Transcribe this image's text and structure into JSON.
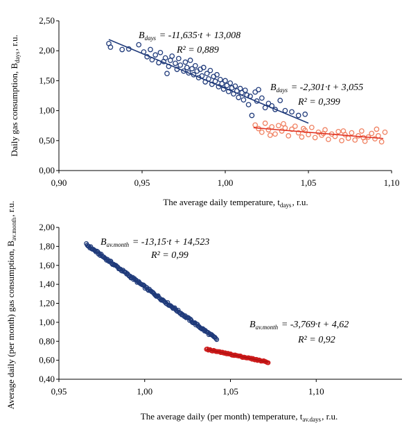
{
  "chart_data": [
    {
      "type": "scatter",
      "xlabel": "The average daily temperature, t_days, r.u.",
      "ylabel": "Daily gas consumption, B_days, r.u.",
      "xlim": [
        0.9,
        1.1
      ],
      "ylim": [
        0.0,
        2.5
      ],
      "x_ticks": [
        "0,90",
        "0,95",
        "1,00",
        "1,05",
        "1,10"
      ],
      "y_ticks": [
        "0,00",
        "0,50",
        "1,00",
        "1,50",
        "2,00",
        "2,50"
      ],
      "grid": false,
      "series": [
        {
          "color": "#1f3a7a",
          "trend": {
            "slope": -11.635,
            "intercept": 13.008,
            "x_range": [
              0.93,
              1.05
            ]
          },
          "equation": "B_days = -11,635·t + 13,008",
          "r2": "R² = 0,889",
          "points": [
            [
              0.93,
              2.12
            ],
            [
              0.931,
              2.06
            ],
            [
              0.938,
              2.02
            ],
            [
              0.942,
              2.03
            ],
            [
              0.948,
              2.1
            ],
            [
              0.951,
              1.98
            ],
            [
              0.953,
              1.9
            ],
            [
              0.955,
              2.02
            ],
            [
              0.956,
              1.85
            ],
            [
              0.958,
              1.93
            ],
            [
              0.96,
              1.8
            ],
            [
              0.961,
              1.97
            ],
            [
              0.963,
              1.82
            ],
            [
              0.964,
              1.88
            ],
            [
              0.965,
              1.62
            ],
            [
              0.966,
              1.74
            ],
            [
              0.967,
              1.84
            ],
            [
              0.968,
              1.91
            ],
            [
              0.97,
              1.79
            ],
            [
              0.971,
              1.69
            ],
            [
              0.972,
              1.87
            ],
            [
              0.973,
              1.76
            ],
            [
              0.975,
              1.66
            ],
            [
              0.976,
              1.81
            ],
            [
              0.977,
              1.72
            ],
            [
              0.978,
              1.63
            ],
            [
              0.979,
              1.84
            ],
            [
              0.98,
              1.7
            ],
            [
              0.981,
              1.6
            ],
            [
              0.982,
              1.75
            ],
            [
              0.983,
              1.66
            ],
            [
              0.984,
              1.55
            ],
            [
              0.985,
              1.69
            ],
            [
              0.986,
              1.58
            ],
            [
              0.987,
              1.72
            ],
            [
              0.988,
              1.48
            ],
            [
              0.989,
              1.62
            ],
            [
              0.99,
              1.53
            ],
            [
              0.991,
              1.67
            ],
            [
              0.992,
              1.44
            ],
            [
              0.993,
              1.57
            ],
            [
              0.994,
              1.49
            ],
            [
              0.995,
              1.6
            ],
            [
              0.996,
              1.4
            ],
            [
              0.997,
              1.52
            ],
            [
              0.998,
              1.45
            ],
            [
              0.999,
              1.36
            ],
            [
              1.0,
              1.5
            ],
            [
              1.001,
              1.42
            ],
            [
              1.002,
              1.32
            ],
            [
              1.003,
              1.46
            ],
            [
              1.004,
              1.38
            ],
            [
              1.005,
              1.28
            ],
            [
              1.006,
              1.41
            ],
            [
              1.007,
              1.33
            ],
            [
              1.008,
              1.22
            ],
            [
              1.009,
              1.37
            ],
            [
              1.01,
              1.3
            ],
            [
              1.011,
              1.18
            ],
            [
              1.012,
              1.34
            ],
            [
              1.013,
              1.26
            ],
            [
              1.014,
              1.1
            ],
            [
              1.015,
              1.24
            ],
            [
              1.016,
              0.92
            ],
            [
              1.018,
              1.31
            ],
            [
              1.019,
              1.16
            ],
            [
              1.02,
              1.35
            ],
            [
              1.022,
              1.21
            ],
            [
              1.024,
              1.05
            ],
            [
              1.026,
              1.12
            ],
            [
              1.028,
              1.08
            ],
            [
              1.03,
              1.02
            ],
            [
              1.033,
              1.17
            ],
            [
              1.036,
              1.0
            ],
            [
              1.04,
              0.98
            ],
            [
              1.044,
              0.92
            ],
            [
              1.048,
              0.94
            ]
          ]
        },
        {
          "color": "#f08060",
          "trend": {
            "slope": -2.301,
            "intercept": 3.055,
            "x_range": [
              1.017,
              1.095
            ]
          },
          "equation": "B_days = -2,301·t + 3,055",
          "r2": "R² = 0,399",
          "points": [
            [
              1.018,
              0.76
            ],
            [
              1.02,
              0.7
            ],
            [
              1.022,
              0.64
            ],
            [
              1.024,
              0.79
            ],
            [
              1.026,
              0.68
            ],
            [
              1.028,
              0.73
            ],
            [
              1.03,
              0.61
            ],
            [
              1.032,
              0.75
            ],
            [
              1.034,
              0.66
            ],
            [
              1.036,
              0.71
            ],
            [
              1.038,
              0.58
            ],
            [
              1.04,
              0.69
            ],
            [
              1.042,
              0.74
            ],
            [
              1.044,
              0.63
            ],
            [
              1.046,
              0.56
            ],
            [
              1.048,
              0.67
            ],
            [
              1.05,
              0.6
            ],
            [
              1.052,
              0.72
            ],
            [
              1.054,
              0.55
            ],
            [
              1.056,
              0.64
            ],
            [
              1.058,
              0.59
            ],
            [
              1.06,
              0.68
            ],
            [
              1.062,
              0.52
            ],
            [
              1.064,
              0.61
            ],
            [
              1.066,
              0.57
            ],
            [
              1.068,
              0.65
            ],
            [
              1.07,
              0.5
            ],
            [
              1.072,
              0.6
            ],
            [
              1.074,
              0.54
            ],
            [
              1.076,
              0.63
            ],
            [
              1.078,
              0.51
            ],
            [
              1.08,
              0.58
            ],
            [
              1.082,
              0.66
            ],
            [
              1.084,
              0.49
            ],
            [
              1.086,
              0.56
            ],
            [
              1.088,
              0.62
            ],
            [
              1.09,
              0.53
            ],
            [
              1.092,
              0.58
            ],
            [
              1.094,
              0.48
            ],
            [
              1.096,
              0.64
            ],
            [
              1.027,
              0.59
            ],
            [
              1.035,
              0.78
            ],
            [
              1.047,
              0.7
            ],
            [
              1.059,
              0.62
            ],
            [
              1.071,
              0.66
            ],
            [
              1.083,
              0.55
            ],
            [
              1.091,
              0.69
            ]
          ]
        }
      ]
    },
    {
      "type": "scatter",
      "xlabel": "The average daily (per month) temperature, t_av.days, r.u.",
      "ylabel": "Average daily (per month) gas consumption, B_av.month, r.u.",
      "xlim": [
        0.95,
        1.15
      ],
      "ylim": [
        0.4,
        2.0
      ],
      "x_ticks": [
        "0,95",
        "1,00",
        "1,05",
        "1,10"
      ],
      "y_ticks": [
        "0,40",
        "0,60",
        "0,80",
        "1,00",
        "1,20",
        "1,40",
        "1,60",
        "1,80",
        "2,00"
      ],
      "grid": false,
      "series": [
        {
          "color": "#1f3a7a",
          "trend": {
            "slope": -13.15,
            "intercept": 14.523,
            "x_range": [
              0.966,
              1.042
            ]
          },
          "equation": "B_av.month = -13,15·t + 14,523",
          "r2": "R² = 0,99",
          "x_range": [
            0.966,
            1.042
          ],
          "count": 150,
          "line_wobble": 0.012
        },
        {
          "color": "#cc1a1a",
          "trend": {
            "slope": -3.769,
            "intercept": 4.62,
            "x_range": [
              1.036,
              1.072
            ]
          },
          "equation": "B_av.month = -3,769·t + 4,62",
          "r2": "R² = 0,92",
          "x_range": [
            1.036,
            1.072
          ],
          "count": 70,
          "line_wobble": 0.006
        }
      ]
    }
  ]
}
